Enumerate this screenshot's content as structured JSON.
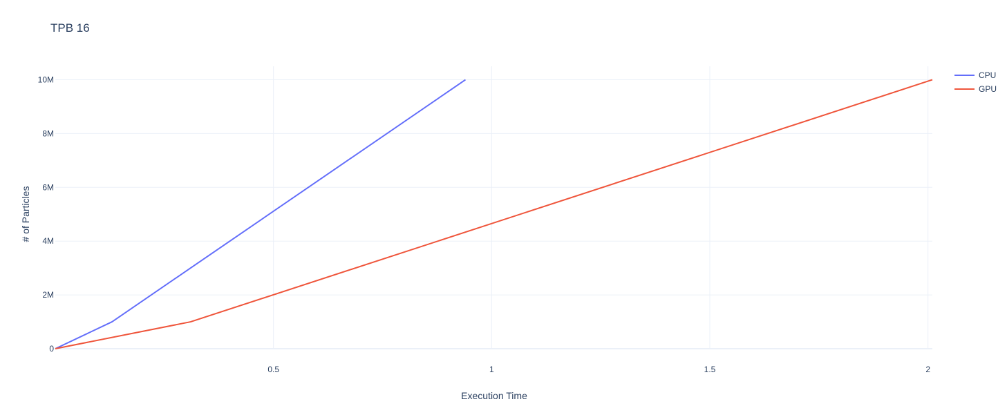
{
  "chart_data": {
    "type": "line",
    "title": "TPB 16",
    "xlabel": "Execution Time",
    "ylabel": "# of Particles",
    "xlim": [
      0,
      2.01
    ],
    "ylim": [
      0,
      10500000
    ],
    "xticks": [
      {
        "value": 0.5,
        "label": "0.5"
      },
      {
        "value": 1,
        "label": "1"
      },
      {
        "value": 1.5,
        "label": "1.5"
      },
      {
        "value": 2,
        "label": "2"
      }
    ],
    "yticks": [
      {
        "value": 0,
        "label": "0"
      },
      {
        "value": 2000000,
        "label": "2M"
      },
      {
        "value": 4000000,
        "label": "4M"
      },
      {
        "value": 6000000,
        "label": "6M"
      },
      {
        "value": 8000000,
        "label": "8M"
      },
      {
        "value": 10000000,
        "label": "10M"
      }
    ],
    "grid": true,
    "legend_position": "top-right",
    "series": [
      {
        "name": "CPU",
        "color": "#636efa",
        "x": [
          0.0,
          0.13,
          0.94
        ],
        "y": [
          0,
          1000000,
          10000000
        ]
      },
      {
        "name": "GPU",
        "color": "#ef553b",
        "x": [
          0.0,
          0.31,
          2.01
        ],
        "y": [
          0,
          1000000,
          10000000
        ]
      }
    ]
  }
}
